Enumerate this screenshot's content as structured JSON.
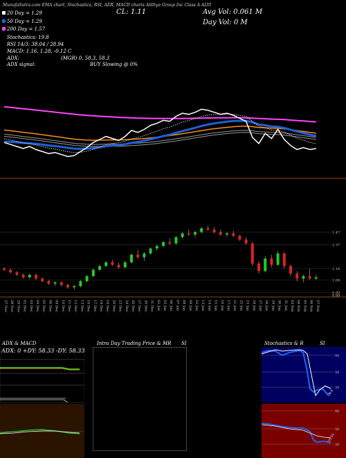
{
  "header": {
    "title_line": "MunafaSutra.com  EMA chart, Stochastics, RSI, ADX, MACD charts  Alithya Group Inc Class A  ALYI",
    "ema20": "20 Day = 1.29",
    "ema50": "50 Day = 1.29",
    "ema200": "200 Day = 1.57",
    "stoch": "Stochastics: 19.8",
    "rsi": "RSI 14/3: 38.04 / 28.94",
    "macd": "MACD: 1.16, 1.28, -0.12  C",
    "adx": "ADX:",
    "adx_val": "(MGR) 0, 58.3, 58.3",
    "adx_signal_label": "ADX  signal:",
    "adx_signal_val": "BUY Slowing @ 0%",
    "close": "CL: 1.11",
    "avg_vol": "Avg Vol: 0.061  M",
    "day_vol": "Day Vol: 0   M"
  },
  "panels": {
    "adx_title": "ADX  & MACD",
    "intra_title": "Intra  Day Trading Price  & MR",
    "intra_si": "SI",
    "stoch_title": "Stochastics & R",
    "stoch_si": "SI",
    "adx_line": "ADX: 0  +DY: 58.33  -DY: 58.33"
  },
  "colors": {
    "ema20": "#ffffff",
    "ema50": "#1e5fd8",
    "ema100": "#ff8c1a",
    "ema200": "#ff44ff",
    "up": "#22cc22",
    "down": "#dd2222",
    "stoch_bg": "#000060",
    "rsi_bg": "#7a0000"
  },
  "chart_data": {
    "type": "candlestick",
    "dates": [
      "27 Nov",
      "28 Nov",
      "29 Nov",
      "02 Dec",
      "03 Dec",
      "04 Dec",
      "05 Dec",
      "06 Dec",
      "09 Dec",
      "10 Dec",
      "11 Dec",
      "12 Dec",
      "13 Dec",
      "16 Dec",
      "17 Dec",
      "18 Dec",
      "19 Dec",
      "20 Dec",
      "23 Dec",
      "24 Dec",
      "26 Dec",
      "27 Dec",
      "30 Dec",
      "31 Dec",
      "02 Jan",
      "03 Jan",
      "06 Jan",
      "07 Jan",
      "08 Jan",
      "09 Jan",
      "10 Jan",
      "13 Jan",
      "14 Jan",
      "15 Jan",
      "16 Jan",
      "17 Jan",
      "21 Jan",
      "22 Jan",
      "23 Jan",
      "24 Jan",
      "27 Jan",
      "28 Jan",
      "29 Jan",
      "30 Jan",
      "31 Jan",
      "03 Feb",
      "04 Feb",
      "05 Feb",
      "06 Feb",
      "07 Feb"
    ],
    "price_ticks": [
      "1.47",
      "1.37",
      "1.18",
      "1.09",
      "0.99",
      "0.99"
    ],
    "candles": [
      [
        1.18,
        1.19,
        1.16,
        1.17
      ],
      [
        1.17,
        1.18,
        1.14,
        1.15
      ],
      [
        1.15,
        1.16,
        1.12,
        1.13
      ],
      [
        1.13,
        1.14,
        1.1,
        1.11
      ],
      [
        1.11,
        1.14,
        1.1,
        1.13
      ],
      [
        1.13,
        1.14,
        1.09,
        1.1
      ],
      [
        1.1,
        1.11,
        1.07,
        1.08
      ],
      [
        1.08,
        1.09,
        1.05,
        1.06
      ],
      [
        1.06,
        1.08,
        1.04,
        1.07
      ],
      [
        1.07,
        1.08,
        1.04,
        1.05
      ],
      [
        1.05,
        1.06,
        1.02,
        1.03
      ],
      [
        1.03,
        1.05,
        1.01,
        1.04
      ],
      [
        1.04,
        1.09,
        1.03,
        1.08
      ],
      [
        1.08,
        1.13,
        1.07,
        1.12
      ],
      [
        1.12,
        1.18,
        1.11,
        1.17
      ],
      [
        1.17,
        1.21,
        1.16,
        1.2
      ],
      [
        1.2,
        1.24,
        1.19,
        1.23
      ],
      [
        1.23,
        1.25,
        1.2,
        1.21
      ],
      [
        1.21,
        1.23,
        1.18,
        1.19
      ],
      [
        1.19,
        1.24,
        1.18,
        1.23
      ],
      [
        1.23,
        1.3,
        1.22,
        1.29
      ],
      [
        1.29,
        1.33,
        1.26,
        1.27
      ],
      [
        1.27,
        1.31,
        1.24,
        1.3
      ],
      [
        1.3,
        1.35,
        1.29,
        1.34
      ],
      [
        1.34,
        1.37,
        1.32,
        1.36
      ],
      [
        1.36,
        1.4,
        1.35,
        1.39
      ],
      [
        1.39,
        1.42,
        1.37,
        1.38
      ],
      [
        1.38,
        1.44,
        1.37,
        1.43
      ],
      [
        1.43,
        1.47,
        1.42,
        1.46
      ],
      [
        1.46,
        1.49,
        1.44,
        1.45
      ],
      [
        1.45,
        1.48,
        1.43,
        1.47
      ],
      [
        1.47,
        1.51,
        1.46,
        1.5
      ],
      [
        1.5,
        1.52,
        1.48,
        1.49
      ],
      [
        1.49,
        1.51,
        1.46,
        1.47
      ],
      [
        1.47,
        1.49,
        1.44,
        1.45
      ],
      [
        1.45,
        1.47,
        1.43,
        1.46
      ],
      [
        1.46,
        1.48,
        1.43,
        1.44
      ],
      [
        1.44,
        1.45,
        1.4,
        1.41
      ],
      [
        1.41,
        1.43,
        1.37,
        1.38
      ],
      [
        1.38,
        1.39,
        1.2,
        1.22
      ],
      [
        1.22,
        1.24,
        1.14,
        1.16
      ],
      [
        1.16,
        1.28,
        1.15,
        1.26
      ],
      [
        1.26,
        1.29,
        1.19,
        1.21
      ],
      [
        1.21,
        1.32,
        1.2,
        1.3
      ],
      [
        1.3,
        1.31,
        1.18,
        1.2
      ],
      [
        1.2,
        1.21,
        1.12,
        1.14
      ],
      [
        1.14,
        1.16,
        1.08,
        1.1
      ],
      [
        1.1,
        1.13,
        1.07,
        1.12
      ],
      [
        1.12,
        1.18,
        1.09,
        1.1
      ],
      [
        1.1,
        1.13,
        1.09,
        1.11
      ]
    ]
  }
}
